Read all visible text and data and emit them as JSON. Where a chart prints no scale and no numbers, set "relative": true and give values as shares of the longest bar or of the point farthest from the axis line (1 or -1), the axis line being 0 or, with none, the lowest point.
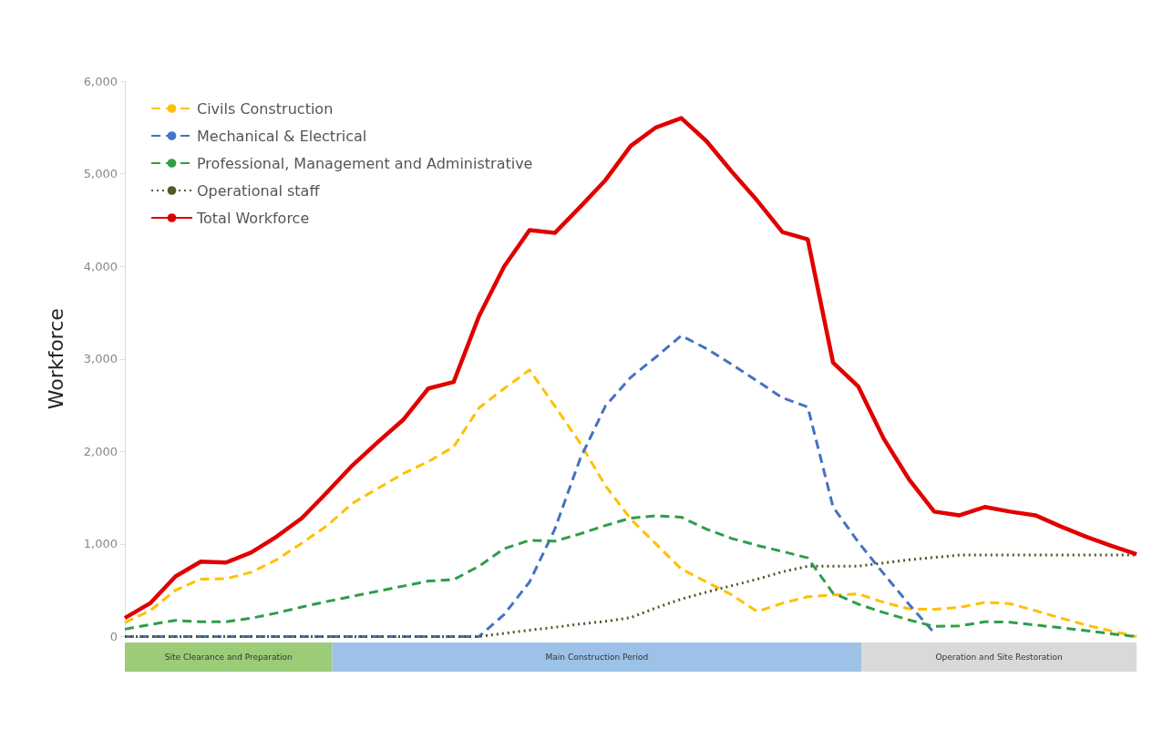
{
  "chart_data": [
    {
      "type": "line",
      "ylabel": "Workforce",
      "ylim": [
        0,
        6000
      ],
      "categories": [
        null,
        null,
        null,
        null,
        null,
        null,
        null,
        null,
        null,
        null,
        null,
        null,
        null,
        null,
        null,
        null,
        null,
        null,
        null,
        null,
        null,
        null,
        null,
        null,
        null,
        null,
        null,
        null,
        null,
        null,
        null,
        null,
        null,
        null,
        null,
        null,
        null,
        null,
        null,
        null,
        null
      ],
      "yticks": [
        {
          "value": 0,
          "label": "0"
        },
        {
          "value": 1000,
          "label": "1,000"
        },
        {
          "value": 2000,
          "label": "2,000"
        },
        {
          "value": 3000,
          "label": "3,000"
        },
        {
          "value": 4000,
          "label": "4,000"
        },
        {
          "value": 5000,
          "label": "5,000"
        },
        {
          "value": 6000,
          "label": "6,000"
        }
      ],
      "tick_labels": "y",
      "grid": false,
      "legend": "top left",
      "marker": "none",
      "series": [
        {
          "name": "Civils Construction",
          "color": "#ffc000",
          "line_style": "dashed",
          "values": [
            150,
            280,
            500,
            620,
            625,
            695,
            830,
            1010,
            1200,
            1440,
            1600,
            1760,
            1890,
            2050,
            2470,
            2680,
            2880,
            2490,
            2090,
            1630,
            1270,
            1000,
            730,
            590,
            450,
            270,
            360,
            430,
            450,
            460,
            370,
            300,
            295,
            315,
            370,
            355,
            280,
            200,
            125,
            60,
            0
          ]
        },
        {
          "name": "Mechanical & Electrical",
          "color": "#4472c4",
          "line_style": "dashed",
          "values": [
            0,
            0,
            0,
            0,
            0,
            0,
            0,
            0,
            0,
            0,
            0,
            0,
            0,
            0,
            0,
            240,
            590,
            1160,
            1920,
            2490,
            2800,
            3020,
            3250,
            3110,
            2940,
            2760,
            2580,
            2480,
            1400,
            1020,
            680,
            350,
            40,
            null,
            null,
            null,
            null,
            null,
            null,
            null,
            null
          ]
        },
        {
          "name": "Professional, Management and Administrative",
          "color": "#2e9e48",
          "line_style": "dashed",
          "values": [
            80,
            130,
            175,
            160,
            160,
            200,
            255,
            320,
            380,
            435,
            490,
            545,
            600,
            615,
            760,
            950,
            1040,
            1030,
            1110,
            1200,
            1280,
            1305,
            1290,
            1160,
            1060,
            985,
            920,
            850,
            470,
            350,
            260,
            180,
            110,
            115,
            160,
            155,
            125,
            95,
            65,
            30,
            0
          ]
        },
        {
          "name": "Operational staff",
          "color": "#4d5a2a",
          "line_style": "dotted",
          "values": [
            0,
            0,
            0,
            0,
            0,
            0,
            0,
            0,
            0,
            0,
            0,
            0,
            0,
            0,
            0,
            35,
            70,
            100,
            135,
            165,
            205,
            310,
            405,
            480,
            550,
            620,
            700,
            760,
            760,
            760,
            795,
            830,
            855,
            880,
            880,
            880,
            880,
            880,
            880,
            880,
            880
          ]
        },
        {
          "name": "Total Workforce",
          "color": "#e00000",
          "line_style": "solid",
          "values": [
            200,
            360,
            650,
            810,
            800,
            910,
            1080,
            1280,
            1560,
            1850,
            2100,
            2340,
            2680,
            2750,
            3460,
            4000,
            4390,
            4360,
            4640,
            4930,
            5300,
            5500,
            5600,
            5350,
            5020,
            4710,
            4370,
            4290,
            2960,
            2700,
            2140,
            1700,
            1350,
            1310,
            1400,
            1350,
            1310,
            1190,
            1080,
            980,
            890
          ]
        }
      ]
    },
    {
      "type": "bar",
      "orientation": "horizontal",
      "stacked": true,
      "relative": true,
      "categories": [
        null
      ],
      "series": [
        {
          "name": "Site Clearance and Preparation",
          "color": "#9ccc78",
          "values": [
            0.205
          ]
        },
        {
          "name": "Main Construction Period",
          "color": "#9cc2e8",
          "values": [
            0.523
          ]
        },
        {
          "name": "Operation and Site Restoration",
          "color": "#d9d9d9",
          "values": [
            0.272
          ]
        }
      ]
    }
  ]
}
